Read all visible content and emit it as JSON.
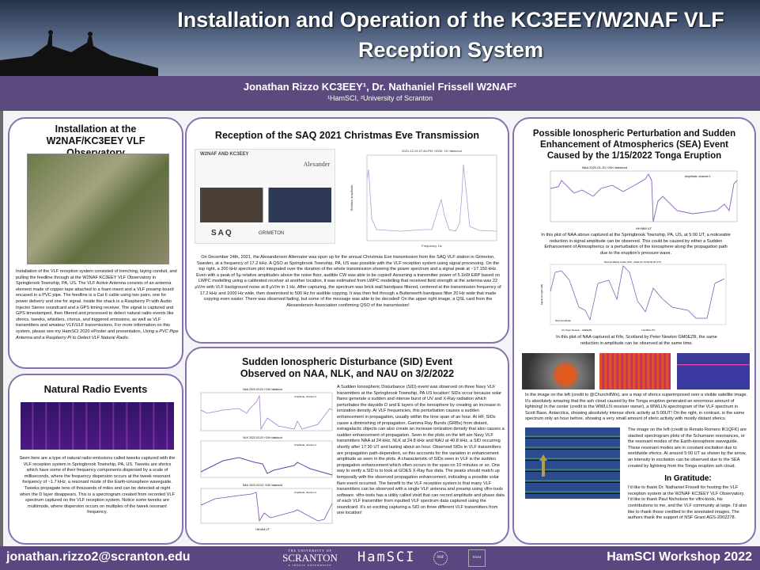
{
  "header": {
    "title": "Installation and Operation of the KC3EEY/W2NAF VLF Reception System"
  },
  "authors": {
    "names": "Jonathan Rizzo KC3EEY¹, Dr. Nathaniel Frissell W2NAF²",
    "affiliations": "¹HamSCI, ²University of Scranton"
  },
  "panels": {
    "installation": {
      "title": "Installation at the W2NAF/KC3EEY VLF Observatory",
      "text": "Installation of the VLF reception system consisted of trenching, laying conduit, and pulling the feedline through at the W2NAF KC3EEY VLF Observatory in Springbrook Township, PA, US. The VLF Active Antenna consists of an antenna element made of copper tape attached to a foam insert and a VLF preamp board encased in a PVC pipe. The feedline is a Cat 6 cable using two pairs, one for power delivery and one for signal. Inside the shack is a Raspberry Pi with Audio Injector Stereo soundcard and a GPS timing receiver. The signal is captured and GPS timestamped, then filtered and processed to detect natural radio events like sferics, tweeks, whistlers, chorus, and triggered emissions, as well as VLF transmitters and amateur VLF/ULF transmissions. For more information on this system, please see my HamSCI 2020 ePoster and presentation, ",
      "text_italic": "Using a PVC Pipe Antenna and a Raspberry Pi to Detect VLF Natural Radio."
    },
    "natural": {
      "title": "Natural Radio Events",
      "text": "Seen here are a type of natural radio emissions called tweeks captured with the VLF reception system in Springbrook Township, PA, US. Tweeks are sferics which have some of their frequency components dispersed by a scale of milliseconds, where the frequency dispersion occurs at the tweek resonant frequency of ~1.7 kHz, a resonant mode of the Earth-ionosphere waveguide. Tweeks propagate tens of thousands of miles and can be detected at night when the D layer disappears. This is a spectrogram created from recorded VLF spectrum captured on the VLF reception system. Notice some tweeks are multimode, where dispersion occurs on multiples of the tweek resonant frequency."
    },
    "saq": {
      "title": "Reception of the SAQ 2021 Christmas Eve Transmission",
      "qsl_to": "W2NAF AND KC3EEY",
      "qsl_brand": "Alexander",
      "qsl_saq": "SAQ",
      "qsl_grimeton": "GRIMETON",
      "plot_title": "2021-12-24,07:46:PM,+1DW: 1H /data/ccd",
      "plot_xlabel": "Frequency, Hz",
      "plot_ylabel": "Relative amplitude",
      "text": "On December 24th, 2021, the Alexanderson Alternator was spun up for the annual Christmas Eve transmission from the SAQ VLF station in Grimeton, Sweden, at a frequency of 17.2 kHz. A QSO at Springbrook Township, PA, US was possible with the VLF reception system using signal processing. On the top right, a 200 kHz spectrum plot integrated over the duration of the whole transmission showing the power spectrum and a signal peak at ~17.150 kHz. Even with a peak of 5μ relative amplitudes above the noise floor, audible CW was able to be copied! Assuming a transmitter power of 5.1kW ERP based on LWPC modelling using a calibrated receiver at another location, it was estimated from LWPC modelling that received field strength at the antenna was 22 μV/m with VLF background noise at 8 μV/m in 1 Hz. After capturing, the spectrum was brick wall bandpass filtered, centered at the transmission frequency of 17.2 kHz and 1000 Hz wide, then downmixed to 500 Hz for audible copying. It was then fed through a Butterworth bandpass filter 20 Hz wide that made copying even easier. There was observed fading, but some of the message was able to be decoded! On the upper right image, a QSL card from the Alexanderson Association confirming QSO of the transmission!"
    },
    "sid": {
      "title": "Sudden Ionospheric Disturbance (SID) Event Observed on NAA, NLK, and NAU on 3/2/2022",
      "plots": [
        {
          "title": "NAA 2022-03-02,+24h /data/ccd",
          "legend": "Amplitude, channel 1"
        },
        {
          "title": "NLK 2022-03-02,+24h /data/ccd",
          "legend": "Amplitude, channel 1"
        },
        {
          "title": "NAU 2022-03-02,+24h /data/ccd",
          "legend": "Amplitude, channel 1"
        }
      ],
      "xlabel": "HH:MM UT",
      "text": "A Sudden Ionospheric Disturbance (SID) event was observed on three Navy VLF transmitters at the Springbrook Township, PA US location! SIDs occur because solar flares generate a sudden and intense burst of UV and X-Ray radiation which perturbates the dayside D and E layers of the ionosphere by creating an increase in ionization density. At VLF frequencies, this perturbation causes a sudden enhancement in propagation, usually within the time span of an hour. At HF, SIDs cause a diminishing of propagation. Gamma Ray Bursts (GRBs) from distant, extragalactic objects can also create an increase ionization density that also causes a sudden enhancement of propagation. Seen in the plots on the left are Navy VLF transmitters NAA at 24 kHz, NLK at 24.8 kHz and NAU at 40.8 kHz, a SID occurring shortly after 17:30 UT and lasting about an hour. Observed SIDs in VLF transmitters are propagation path-dependent, so this accounts for the variation in enhancement amplitude as seen in the plots. A characteristic of SIDs seen in VLF is the sudden propagation enhancement which often occurs in the span on 10 minutes or so. One way to verify a SID is to look at GOES X-Ray flux data. The peaks should match up temporally with the observed propagation enhancement, indicating a possible solar flare event occurred. The benefit to the VLF reception system is that many VLF transmitters can be observed with a single VLF antenna and preamp using vlfrx-tools software. vlfrx-tools has a utility called vtsid that can record amplitude and phase data of each VLF transmitter from inputted VLF spectrum data captured using the soundcard. It's so exciting capturing a SID on three different VLF transmitters from one location!"
    },
    "tonga": {
      "title": "Possible Ionospheric Perturbation and Sudden Enhancement of Atmospherics (SEA) Event Caused by the 1/15/2022 Tonga Eruption",
      "plot1_title": "NAA 2022-01-15,+24h /data/ccd",
      "plot1_legend": "Amplitude, channel 1",
      "plot1_xlabel": "HH:MM UT",
      "caption1": "In this plot of NAA above captured at the Springbrook Township, PA, US, at 5:00 UT, a noticeable reduction in signal amplitude can be observed. This could be caused by either a Sudden Enhancement of Atmospherics or a perturbation of the ionosphere along the propagation path due to the eruption's pressure wave.",
      "plot2_title": "NAA 24.00kHz Cutler,USA - 2022-01-15 00:00:00 UTC",
      "plot2_ylabel": "Signal strength (dB)",
      "plot2_legend": "NAA Amplitude",
      "plot2_credit": "(C) Peter Newton - GM0EZR",
      "plot2_xlabel": "HH:MM UTC",
      "caption2": "In this plot of NAA captured at Fife, Scotland by Peter Newton GM0EZR, the same reduction in amplitude can be observed at the same time.",
      "caption3": "In the image on the left (credit to @ChurchillWx), are a map of sferics superimposed over a visible satellite image. It's absolutely amazing that the ash cloud caused by the Tonga eruption generated an enormous amount of lightning! In the center (credit to the WWLLN receiver owner), a WWLLN spectrogram of the VLF spectrum in Scott Base, Antarctica, showing absolutely intense sferic activity at 5:00UT! On the right, in contrast, is the same spectrum only an hour before, showing a very small amount of sferic activity with mostly distant sferics.",
      "caption4": "The image on the left (credit to Renato Romero IK1QFK) are stacked spectrogram plots of the Schumann resonances, or the resonant modes of the Earth-ionosphere waveguide. These resonant modes are in constant excitation due to worldwide sferics. At around 5:00 UT as shown by the arrow, an intensity in excitation can be observed due to the SEA created by lightning from the Tonga eruption ash cloud.",
      "gratitude_title": "In Gratitude:",
      "gratitude_text": "I'd like to thank Dr. Nathaniel Frissell for hosting the VLF reception system at the W2NAF KC3EEY VLF Observatory. I'd like to thank Paul Nicholson for vlfrx-tools, his contributions to me, and the VLF community at large. I'd also like to thank those credited to the annotated images. The authors thank the support of NSF Grant AGS-2002278."
    }
  },
  "footer": {
    "email": "jonathan.rizzo2@scranton.edu",
    "workshop": "HamSCI Workshop 2022",
    "logos": {
      "scranton_top": "THE UNIVERSITY OF",
      "scranton": "SCRANTON",
      "scranton_bottom": "A JESUIT UNIVERSITY",
      "hamsci": "HamSCI",
      "nsf": "NSF",
      "nasa": "NASA"
    }
  },
  "colors": {
    "accent": "#5a4780",
    "panel_border": "#8673ad",
    "plot_line": "#8a5fc0"
  }
}
